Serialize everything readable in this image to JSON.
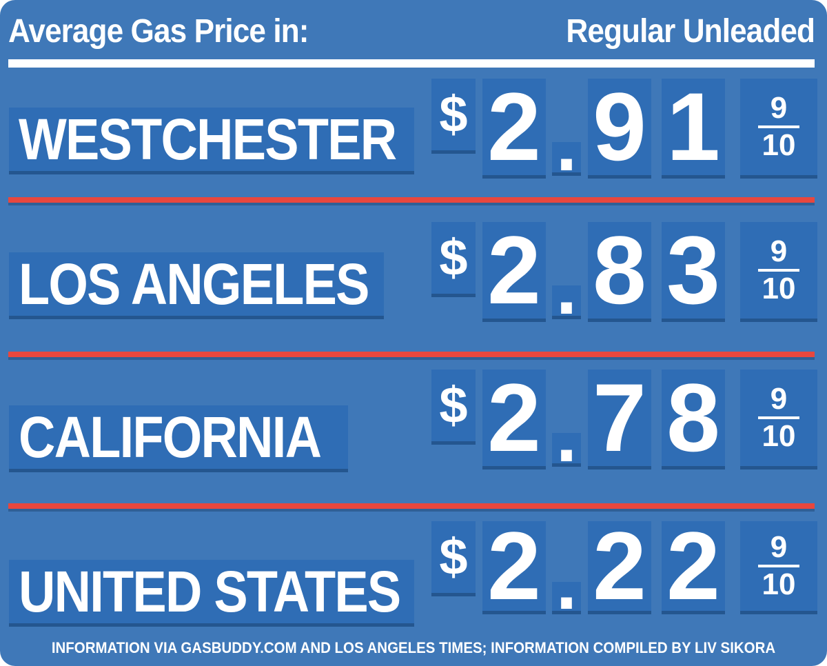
{
  "header": {
    "title": "Average Gas Price in:",
    "fuel_type": "Regular Unleaded"
  },
  "rows": [
    {
      "location": "WESTCHESTER",
      "dollar": "$",
      "d1": "2",
      "dot": ".",
      "d2": "9",
      "d3": "1",
      "frac_num": "9",
      "frac_den": "10"
    },
    {
      "location": "LOS ANGELES",
      "dollar": "$",
      "d1": "2",
      "dot": ".",
      "d2": "8",
      "d3": "3",
      "frac_num": "9",
      "frac_den": "10"
    },
    {
      "location": "CALIFORNIA",
      "dollar": "$",
      "d1": "2",
      "dot": ".",
      "d2": "7",
      "d3": "8",
      "frac_num": "9",
      "frac_den": "10"
    },
    {
      "location": "UNITED STATES",
      "dollar": "$",
      "d1": "2",
      "dot": ".",
      "d2": "2",
      "d3": "2",
      "frac_num": "9",
      "frac_den": "10"
    }
  ],
  "footer": {
    "credit": "INFORMATION VIA GASBUDDY.COM AND LOS ANGELES TIMES; INFORMATION COMPILED BY LIV SIKORA"
  },
  "colors": {
    "background": "#3f78b8",
    "tile": "#2f6db5",
    "divider": "#e8473e",
    "text": "#ffffff"
  }
}
